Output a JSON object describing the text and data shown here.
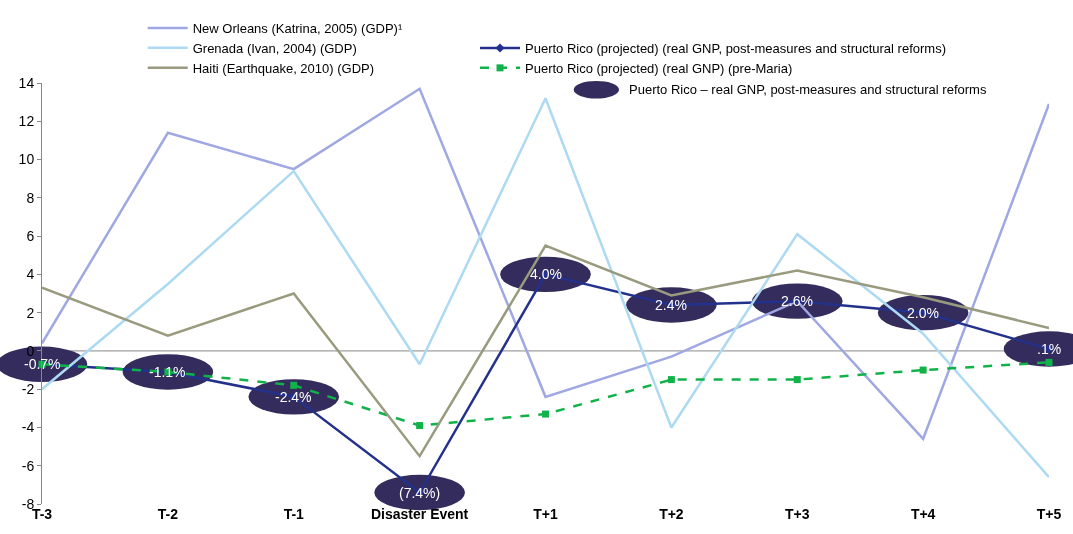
{
  "chart_data": {
    "type": "line",
    "categories": [
      "T-3",
      "T-2",
      "T-1",
      "Disaster Event",
      "T+1",
      "T+2",
      "T+3",
      "T+4",
      "T+5"
    ],
    "series": [
      {
        "name": "New Orleans (Katrina, 2005) (GDP)¹",
        "color": "#9fa8e2",
        "values": [
          0.4,
          11.4,
          9.5,
          13.7,
          -2.4,
          -0.3,
          2.6,
          -4.6,
          12.9
        ]
      },
      {
        "name": "Puerto Rico (projected) (real GNP, post-measures and structural reforms)",
        "color": "#23318c",
        "marker": "diamond",
        "values": [
          -0.7,
          -1.1,
          -2.4,
          -7.4,
          4.0,
          2.4,
          2.6,
          2.0,
          0.1
        ],
        "value_labels": [
          "-0.7%",
          "-1.1%",
          "-2.4%",
          "(7.4%)",
          "4.0%",
          "2.4%",
          "2.6%",
          "2.0%",
          ".1%"
        ]
      },
      {
        "name": "Grenada (Ivan, 2004) (GDP)",
        "color": "#addaf2",
        "values": [
          -2.0,
          3.5,
          9.4,
          -0.7,
          13.2,
          -4.0,
          6.1,
          0.9,
          -6.6
        ]
      },
      {
        "name": "Puerto Rico (projected) (real GNP) (pre-Maria)",
        "color": "#12b24a",
        "marker": "square",
        "line_style": "dashed",
        "values": [
          -0.7,
          -1.1,
          -1.8,
          -3.9,
          -3.3,
          -1.5,
          -1.5,
          -1.0,
          -0.6
        ]
      },
      {
        "name": "Haiti (Earthquake, 2010) (GDP)",
        "color": "#999a7e",
        "values": [
          3.3,
          0.8,
          3.0,
          -5.5,
          5.5,
          2.9,
          4.2,
          2.8,
          1.2
        ]
      }
    ],
    "ylim": [
      -8,
      14
    ],
    "yticks": [
      -8,
      -6,
      -4,
      -2,
      0,
      2,
      4,
      6,
      8,
      10,
      12,
      14
    ],
    "grid": false,
    "legend": "top",
    "ref_lines": [
      {
        "axis": "y",
        "value": 0,
        "color": "#888888"
      }
    ],
    "annotations": [
      "Puerto Rico – real GNP, post-measures and structural reforms"
    ]
  }
}
